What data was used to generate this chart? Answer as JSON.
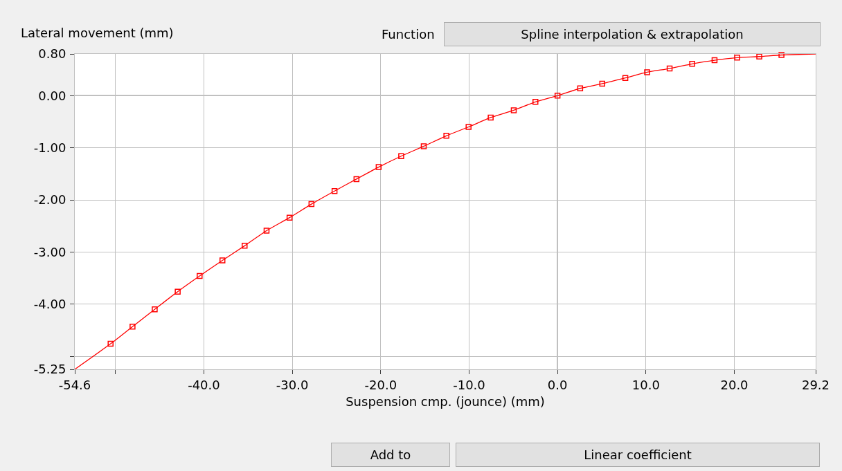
{
  "chart_data": {
    "type": "line",
    "xlabel": "Suspension cmp. (jounce) (mm)",
    "ylabel": "Lateral movement (mm)",
    "xlim": [
      -54.6,
      29.2
    ],
    "ylim": [
      -5.25,
      0.8
    ],
    "xticks": [
      -54.6,
      {
        "value": -50,
        "label": null
      },
      {
        "value": -40,
        "label": "-40.0"
      },
      {
        "value": -30,
        "label": "-30.0"
      },
      {
        "value": -20,
        "label": "-20.0"
      },
      {
        "value": -10,
        "label": "-10.0"
      },
      {
        "value": 0,
        "label": "0.0"
      },
      {
        "value": 10,
        "label": "10.0"
      },
      {
        "value": 20,
        "label": "20.0"
      },
      29.2
    ],
    "yticks": [
      {
        "value": -5.25,
        "label": "-5.25"
      },
      {
        "value": -5,
        "label": null
      },
      {
        "value": -4,
        "label": "-4.00"
      },
      {
        "value": -3,
        "label": "-3.00"
      },
      {
        "value": -2,
        "label": "-2.00"
      },
      {
        "value": -1,
        "label": "-1.00"
      },
      {
        "value": 0,
        "label": "0.00"
      },
      {
        "value": 0.8,
        "label": "0.80"
      }
    ],
    "grid": true,
    "annotations": [
      "Function",
      "Spline interpolation & extrapolation",
      "Add to",
      "Linear coefficient"
    ],
    "series": [
      {
        "color": "#ff0000",
        "marker": "none",
        "line_style": "solid",
        "x": [
          -54.6,
          -50.55,
          -48.07,
          -45.56,
          -42.96,
          -40.48,
          -37.9,
          -35.39,
          -32.91,
          -30.31,
          -27.83,
          -25.22,
          -22.74,
          -20.23,
          -17.68,
          -15.13,
          -12.57,
          -10.06,
          -7.56,
          -4.95,
          -2.5,
          0,
          2.56,
          5.06,
          7.67,
          10.13,
          12.68,
          15.23,
          17.76,
          20.32,
          22.82,
          25.33,
          29.2
        ],
        "values": [
          -5.25,
          -4.76,
          -4.43,
          -4.1,
          -3.76,
          -3.46,
          -3.16,
          -2.88,
          -2.59,
          -2.34,
          -2.08,
          -1.83,
          -1.6,
          -1.37,
          -1.16,
          -0.97,
          -0.77,
          -0.6,
          -0.42,
          -0.28,
          -0.12,
          0,
          0.14,
          0.23,
          0.34,
          0.45,
          0.52,
          0.61,
          0.68,
          0.73,
          0.75,
          0.78,
          0.8
        ]
      },
      {
        "type": "scatter",
        "color": "#ff0000",
        "marker": "square",
        "x": [
          -50.55,
          -48.07,
          -45.56,
          -42.96,
          -40.48,
          -37.9,
          -35.39,
          -32.91,
          -30.31,
          -27.83,
          -25.22,
          -22.74,
          -20.23,
          -17.68,
          -15.13,
          -12.57,
          -10.06,
          -7.56,
          -4.95,
          -2.5,
          0,
          2.56,
          5.06,
          7.67,
          10.13,
          12.68,
          15.23,
          17.76,
          20.32,
          22.82,
          25.33
        ],
        "values": [
          -4.76,
          -4.43,
          -4.1,
          -3.76,
          -3.46,
          -3.16,
          -2.88,
          -2.59,
          -2.34,
          -2.08,
          -1.83,
          -1.6,
          -1.37,
          -1.16,
          -0.97,
          -0.77,
          -0.6,
          -0.42,
          -0.28,
          -0.12,
          0,
          0.14,
          0.23,
          0.34,
          0.45,
          0.52,
          0.61,
          0.68,
          0.73,
          0.75,
          0.78
        ]
      }
    ]
  }
}
